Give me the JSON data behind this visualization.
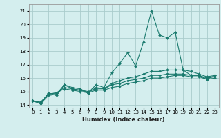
{
  "x": [
    0,
    1,
    2,
    3,
    4,
    5,
    6,
    7,
    8,
    9,
    10,
    11,
    12,
    13,
    14,
    15,
    16,
    17,
    18,
    19,
    20,
    21,
    22,
    23
  ],
  "line1": [
    14.3,
    14.1,
    14.9,
    14.7,
    15.5,
    15.3,
    15.2,
    14.9,
    15.5,
    15.3,
    16.4,
    17.1,
    17.9,
    16.9,
    18.7,
    21.0,
    19.2,
    19.0,
    19.4,
    16.6,
    16.2,
    16.2,
    15.9,
    16.2
  ],
  "line2": [
    14.3,
    14.1,
    14.7,
    14.8,
    15.5,
    15.2,
    15.1,
    14.9,
    15.3,
    15.2,
    15.6,
    15.8,
    16.0,
    16.1,
    16.3,
    16.5,
    16.5,
    16.6,
    16.6,
    16.6,
    16.5,
    16.3,
    16.1,
    16.2
  ],
  "line3": [
    14.3,
    14.2,
    14.8,
    14.9,
    15.3,
    15.2,
    15.1,
    15.0,
    15.2,
    15.2,
    15.5,
    15.6,
    15.8,
    15.9,
    16.0,
    16.2,
    16.2,
    16.3,
    16.3,
    16.3,
    16.2,
    16.2,
    16.0,
    16.1
  ],
  "line4": [
    14.3,
    14.2,
    14.8,
    14.9,
    15.2,
    15.1,
    15.0,
    14.9,
    15.1,
    15.1,
    15.3,
    15.4,
    15.6,
    15.7,
    15.8,
    16.0,
    16.0,
    16.1,
    16.2,
    16.2,
    16.1,
    16.1,
    15.9,
    16.0
  ],
  "color": "#1a7a6e",
  "bg_color": "#d4eeee",
  "grid_color": "#aacccc",
  "xlabel": "Humidex (Indice chaleur)",
  "ylim": [
    13.8,
    21.5
  ],
  "xlim": [
    -0.5,
    23.5
  ],
  "yticks": [
    14,
    15,
    16,
    17,
    18,
    19,
    20,
    21
  ],
  "xticks": [
    0,
    1,
    2,
    3,
    4,
    5,
    6,
    7,
    8,
    9,
    10,
    11,
    12,
    13,
    14,
    15,
    16,
    17,
    18,
    19,
    20,
    21,
    22,
    23
  ]
}
